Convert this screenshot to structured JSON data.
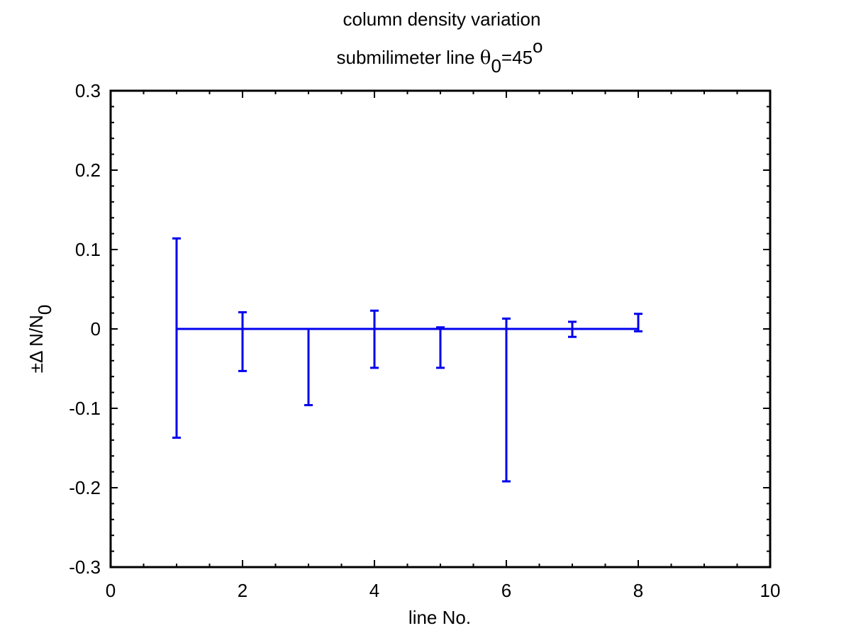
{
  "chart_data": {
    "type": "errorbar",
    "title": "column density variation",
    "subtitle": {
      "prefix": "submilimeter line ",
      "symbol": "θ",
      "subscript": "0",
      "equals": "=45",
      "superscript": "o"
    },
    "xlabel": "line No.",
    "ylabel": {
      "main": "±Δ N/N",
      "subscript": "0"
    },
    "xlim": [
      0,
      10
    ],
    "ylim": [
      -0.3,
      0.3
    ],
    "xticks": [
      0,
      2,
      4,
      6,
      8,
      10
    ],
    "yticks": [
      -0.3,
      -0.2,
      -0.1,
      0,
      0.1,
      0.2,
      0.3
    ],
    "x_tick_labels": [
      "0",
      "2",
      "4",
      "6",
      "8",
      "10"
    ],
    "y_tick_labels": [
      "-0.3",
      "-0.2",
      "-0.1",
      "0",
      "0.1",
      "0.2",
      "0.3"
    ],
    "grid": false,
    "series": [
      {
        "color": "#0000ee",
        "x": [
          1,
          2,
          3,
          4,
          5,
          6,
          7,
          8
        ],
        "y": [
          0,
          0,
          0,
          0,
          0,
          0,
          0,
          0
        ],
        "upper": [
          0.114,
          0.021,
          0.0,
          0.023,
          0.002,
          0.013,
          0.009,
          0.019
        ],
        "lower": [
          -0.137,
          -0.053,
          -0.096,
          -0.049,
          -0.049,
          -0.192,
          -0.01,
          -0.003
        ]
      }
    ]
  }
}
